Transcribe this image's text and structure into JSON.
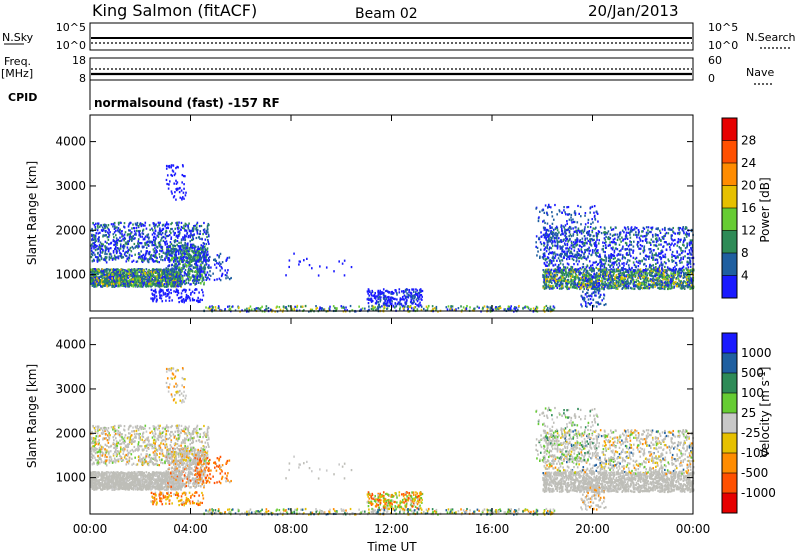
{
  "header": {
    "site": "King Salmon (fitACF)",
    "beam": "Beam 02",
    "date": "20/Jan/2013"
  },
  "top_panels": {
    "nsky_label": "N.Sky",
    "nsky_ticks": [
      "10^5",
      "10^0"
    ],
    "nsearch_label": "N.Search",
    "nsearch_ticks": [
      "10^5",
      "10^0"
    ],
    "freq_label": "Freq.",
    "freq_unit": "[MHz]",
    "freq_ticks": [
      "18",
      "8"
    ],
    "nave_label": "Nave",
    "nave_ticks": [
      "60",
      "0"
    ],
    "cpid_label": "CPID",
    "cpid_text": "normalsound (fast) -157 RF"
  },
  "colors": {
    "power_scale": [
      "#1a1aff",
      "#1f5fa0",
      "#2e8b57",
      "#66cc33",
      "#e6c000",
      "#ff8c00",
      "#ff5000",
      "#e60000"
    ],
    "velocity_scale": [
      "#1a1aff",
      "#1f5fa0",
      "#2e8b57",
      "#66cc33",
      "#c8c8c8",
      "#e6c000",
      "#ff8c00",
      "#ff5000",
      "#e60000"
    ],
    "ground_scatter": "#bebeb8"
  },
  "chart_data": [
    {
      "type": "heatmap",
      "name": "power",
      "ylabel": "Slant Range [km]",
      "xlabel": "Time UT",
      "x_ticks": [
        "00:00",
        "04:00",
        "08:00",
        "12:00",
        "16:00",
        "20:00",
        "00:00"
      ],
      "y_ticks": [
        1000,
        2000,
        3000,
        4000
      ],
      "xlim_hours": [
        0,
        24
      ],
      "ylim_km": [
        180,
        4600
      ],
      "colorbar_label": "Power [dB]",
      "colorbar_ticks": [
        "4",
        "8",
        "12",
        "16",
        "20",
        "24",
        "28"
      ],
      "approx_echo_regions": [
        {
          "t_start": 0.0,
          "t_end": 3.5,
          "range_km": [
            700,
            1200
          ],
          "power_db": 12
        },
        {
          "t_start": 0.0,
          "t_end": 4.5,
          "range_km": [
            1200,
            2200
          ],
          "power_db": 6
        },
        {
          "t_start": 3.0,
          "t_end": 4.0,
          "range_km": [
            2700,
            3500
          ],
          "power_db": 4
        },
        {
          "t_start": 11.0,
          "t_end": 13.0,
          "range_km": [
            300,
            600
          ],
          "power_db": 6
        },
        {
          "t_start": 18.0,
          "t_end": 24.0,
          "range_km": [
            700,
            1100
          ],
          "power_db": 14
        },
        {
          "t_start": 18.0,
          "t_end": 24.0,
          "range_km": [
            1100,
            2100
          ],
          "power_db": 6
        }
      ]
    },
    {
      "type": "heatmap",
      "name": "velocity",
      "ylabel": "Slant Range [km]",
      "xlabel": "Time UT",
      "x_ticks": [
        "00:00",
        "04:00",
        "08:00",
        "12:00",
        "16:00",
        "20:00",
        "00:00"
      ],
      "y_ticks": [
        1000,
        2000,
        3000,
        4000
      ],
      "xlim_hours": [
        0,
        24
      ],
      "ylim_km": [
        180,
        4600
      ],
      "colorbar_label": "Velocity [m s",
      "colorbar_label_sup": "-1",
      "colorbar_label_end": "]",
      "colorbar_ticks": [
        "1000",
        "500",
        "100",
        "25",
        "-25",
        "-100",
        "-500",
        "-1000"
      ]
    }
  ]
}
